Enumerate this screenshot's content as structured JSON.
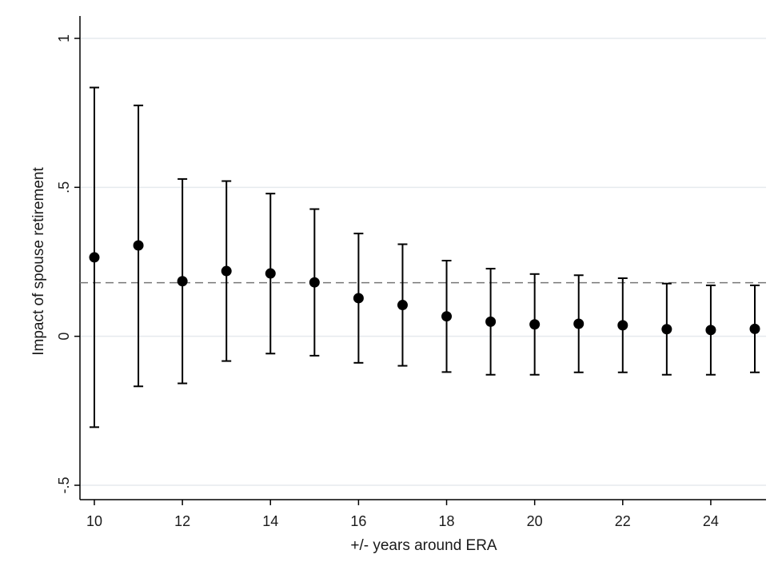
{
  "chart_data": {
    "type": "scatter",
    "xlabel": "+/- years around ERA",
    "ylabel": "Impact of spouse retirement",
    "xlim": [
      10,
      25
    ],
    "ylim": [
      -0.5,
      1
    ],
    "x_ticks": [
      10,
      12,
      14,
      16,
      18,
      20,
      22,
      24
    ],
    "x_tick_labels": [
      "10",
      "12",
      "14",
      "16",
      "18",
      "20",
      "22",
      "24"
    ],
    "y_ticks": [
      -0.5,
      0,
      0.5,
      1
    ],
    "y_tick_labels": [
      "-.5",
      "0",
      ".5",
      "1"
    ],
    "reference_line_y": 0.18,
    "grid": "horizontal",
    "legend": "none",
    "colors": {
      "points": "#000000",
      "grid": "#e6eaee",
      "reference": "#777777"
    },
    "points": [
      {
        "x": 10,
        "y": 0.265,
        "lo": -0.305,
        "hi": 0.835
      },
      {
        "x": 11,
        "y": 0.305,
        "lo": -0.168,
        "hi": 0.775
      },
      {
        "x": 12,
        "y": 0.185,
        "lo": -0.158,
        "hi": 0.528
      },
      {
        "x": 13,
        "y": 0.219,
        "lo": -0.083,
        "hi": 0.521
      },
      {
        "x": 14,
        "y": 0.211,
        "lo": -0.058,
        "hi": 0.479
      },
      {
        "x": 15,
        "y": 0.181,
        "lo": -0.065,
        "hi": 0.427
      },
      {
        "x": 16,
        "y": 0.128,
        "lo": -0.089,
        "hi": 0.345
      },
      {
        "x": 17,
        "y": 0.105,
        "lo": -0.099,
        "hi": 0.309
      },
      {
        "x": 18,
        "y": 0.067,
        "lo": -0.12,
        "hi": 0.254
      },
      {
        "x": 19,
        "y": 0.049,
        "lo": -0.129,
        "hi": 0.227
      },
      {
        "x": 20,
        "y": 0.04,
        "lo": -0.129,
        "hi": 0.209
      },
      {
        "x": 21,
        "y": 0.042,
        "lo": -0.121,
        "hi": 0.205
      },
      {
        "x": 22,
        "y": 0.037,
        "lo": -0.121,
        "hi": 0.195
      },
      {
        "x": 23,
        "y": 0.024,
        "lo": -0.129,
        "hi": 0.177
      },
      {
        "x": 24,
        "y": 0.021,
        "lo": -0.129,
        "hi": 0.171
      },
      {
        "x": 25,
        "y": 0.025,
        "lo": -0.121,
        "hi": 0.171
      }
    ]
  }
}
